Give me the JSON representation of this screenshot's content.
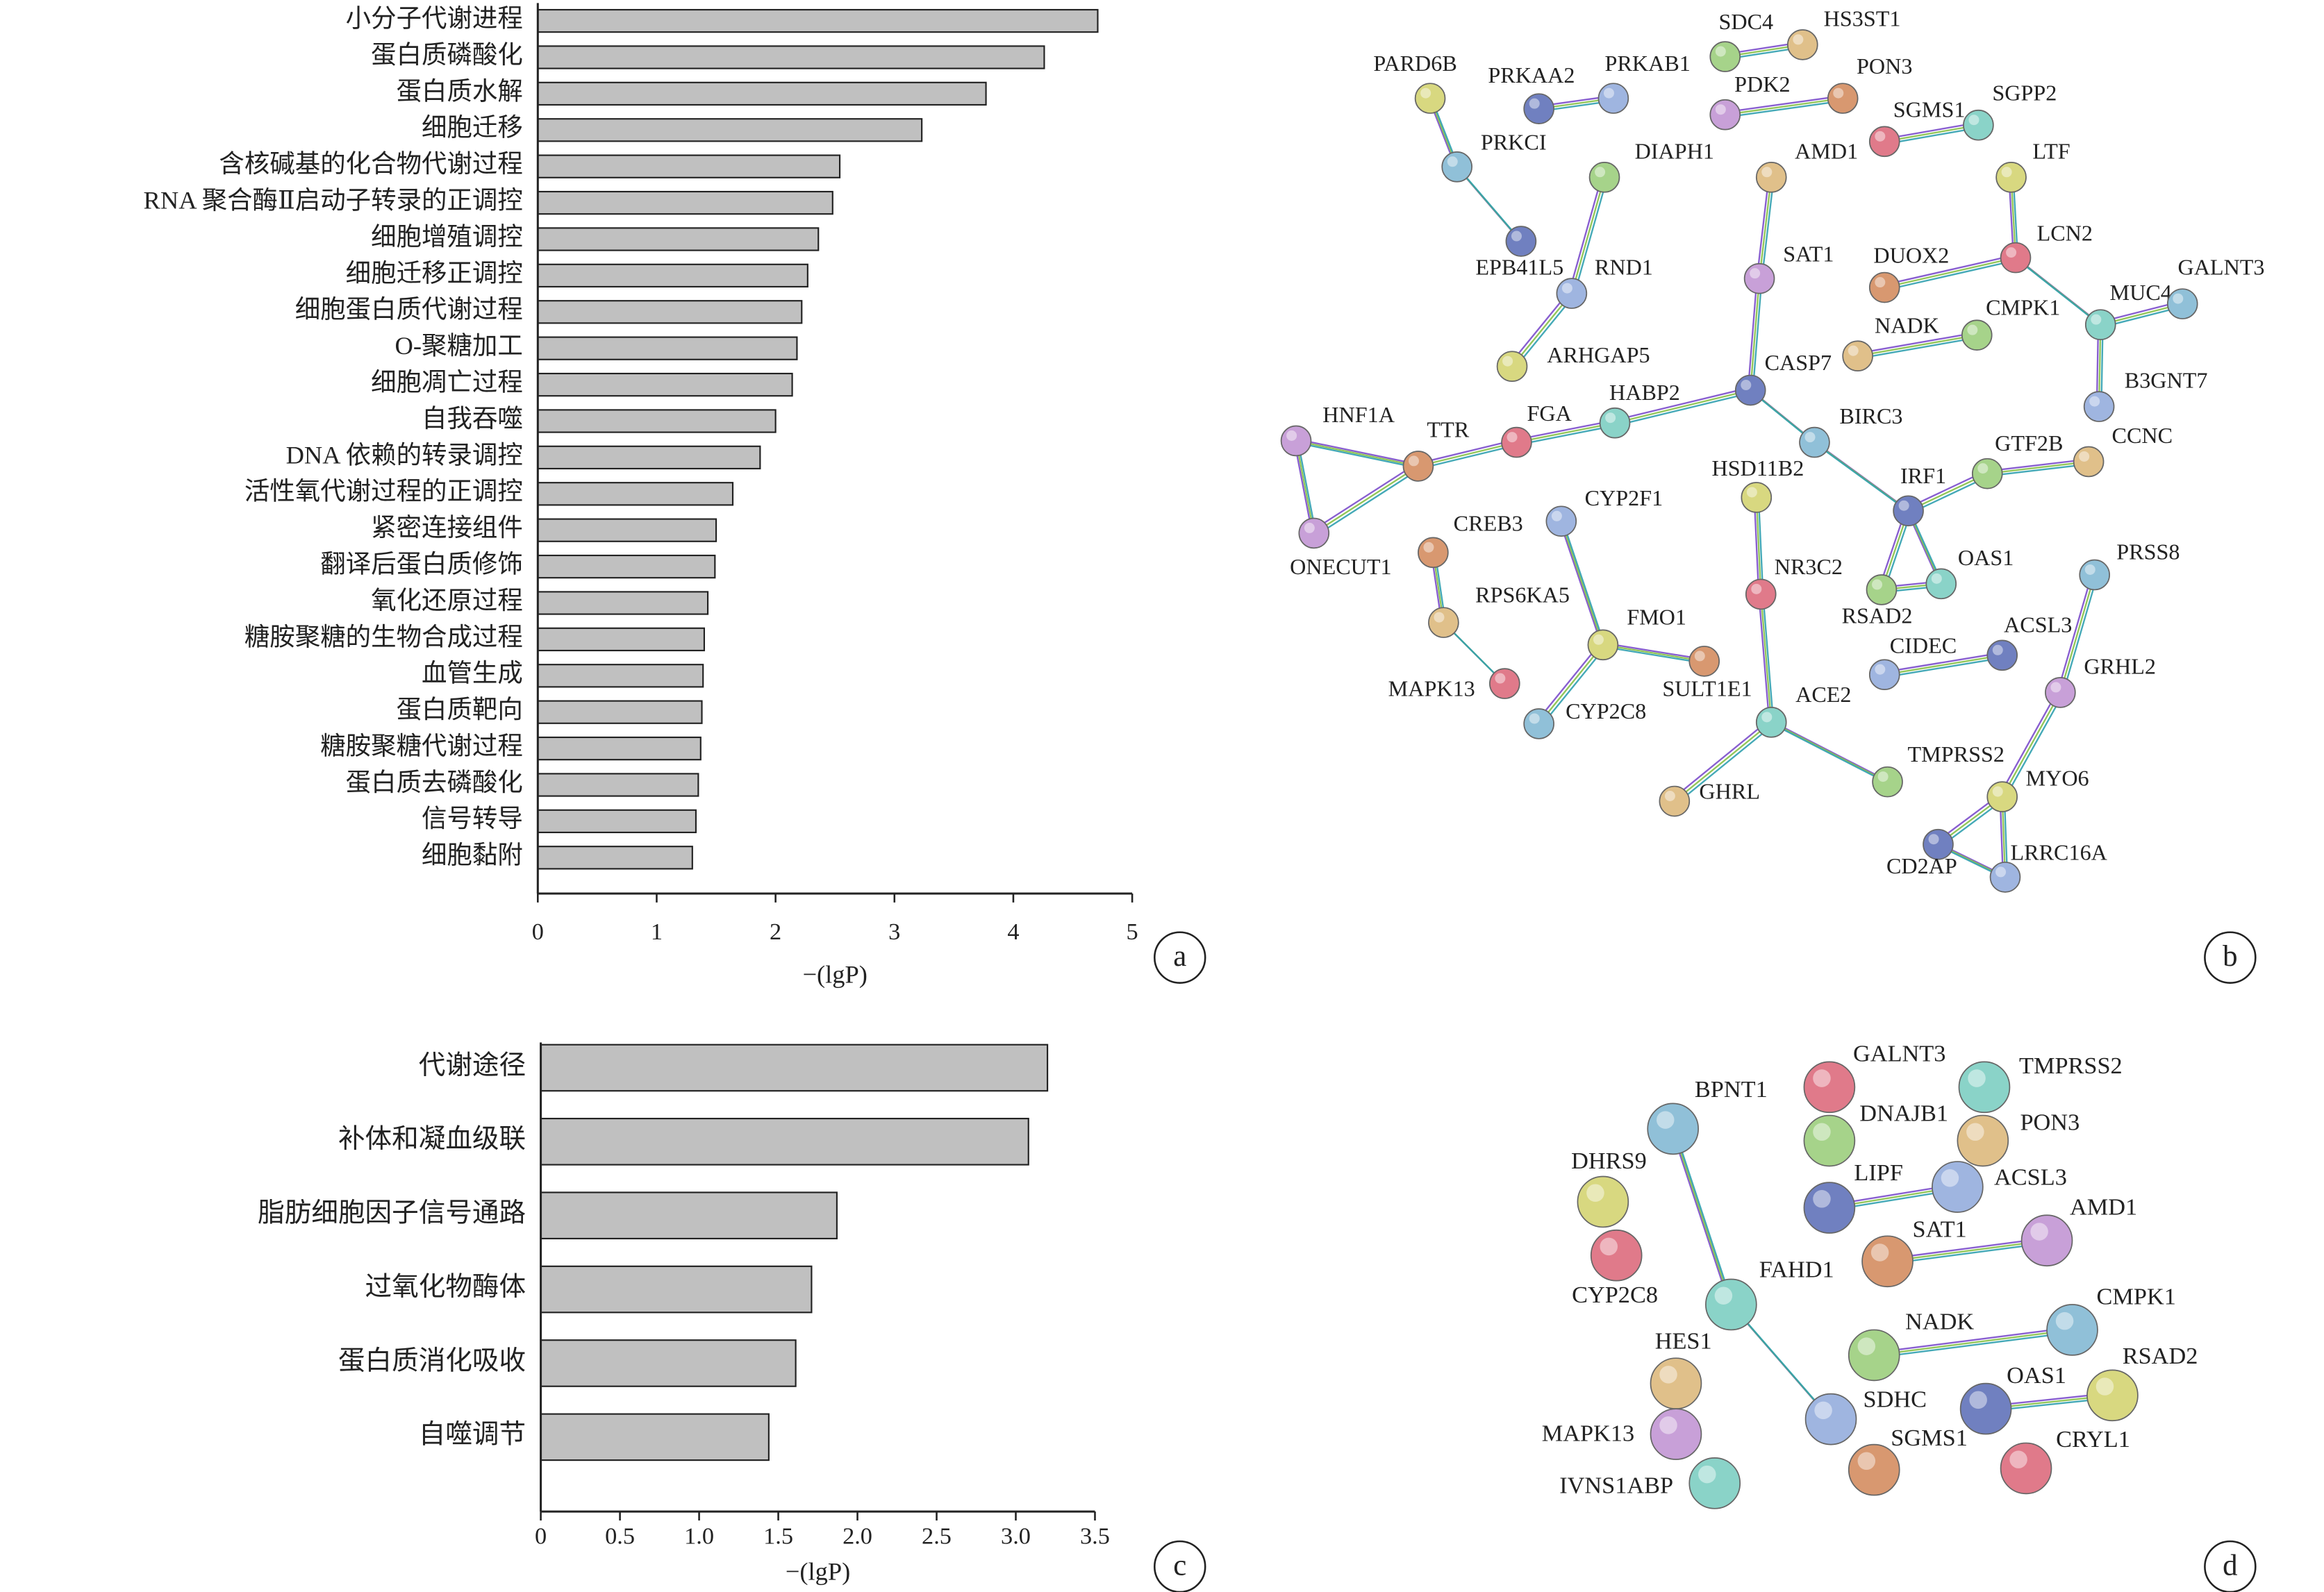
{
  "chart_data": [
    {
      "type": "bar",
      "orientation": "horizontal",
      "panel_label": "a",
      "xlabel": "−(lgP)",
      "categories": [
        "小分子代谢进程",
        "蛋白质磷酸化",
        "蛋白质水解",
        "细胞迁移",
        "含核碱基的化合物代谢过程",
        "RNA 聚合酶Ⅱ启动子转录的正调控",
        "细胞增殖调控",
        "细胞迁移正调控",
        "细胞蛋白质代谢过程",
        "O-聚糖加工",
        "细胞凋亡过程",
        "自我吞噬",
        "DNA 依赖的转录调控",
        "活性氧代谢过程的正调控",
        "紧密连接组件",
        "翻译后蛋白质修饰",
        "氧化还原过程",
        "糖胺聚糖的生物合成过程",
        "血管生成",
        "蛋白质靶向",
        "糖胺聚糖代谢过程",
        "蛋白质去磷酸化",
        "信号转导",
        "细胞黏附"
      ],
      "values": [
        4.71,
        4.26,
        3.77,
        3.23,
        2.54,
        2.48,
        2.36,
        2.27,
        2.22,
        2.18,
        2.14,
        2.0,
        1.87,
        1.64,
        1.5,
        1.49,
        1.43,
        1.4,
        1.39,
        1.38,
        1.37,
        1.35,
        1.33,
        1.3
      ],
      "color": "#c0c0c0",
      "xlim": [
        0,
        5
      ],
      "xticks": [
        0,
        1,
        2,
        3,
        4,
        5
      ]
    },
    {
      "type": "bar",
      "orientation": "horizontal",
      "panel_label": "c",
      "xlabel": "−(lgP)",
      "categories": [
        "代谢途径",
        "补体和凝血级联",
        "脂肪细胞因子信号通路",
        "过氧化物酶体",
        "蛋白质消化吸收",
        "自噬调节"
      ],
      "values": [
        3.2,
        3.08,
        1.87,
        1.71,
        1.61,
        1.44
      ],
      "color": "#c0c0c0",
      "xlim": [
        0,
        3.5
      ],
      "xticks": [
        0,
        0.5,
        {
          "value": 1,
          "label": "1.0"
        },
        1.5,
        {
          "value": 2,
          "label": "2.0"
        },
        2.5,
        {
          "value": 3,
          "label": "3.0"
        },
        3.5
      ]
    }
  ],
  "networks": [
    {
      "panel_label": "b",
      "nodes": [
        "SDC4",
        "HS3ST1",
        "PARD6B",
        "PRKAA2",
        "PRKAB1",
        "PDK2",
        "PON3",
        "SGMS1",
        "SGPP2",
        "PRKCI",
        "DIAPH1",
        "AMD1",
        "LTF",
        "EPB41L5",
        "RND1",
        "SAT1",
        "DUOX2",
        "LCN2",
        "MUC4",
        "GALNT3",
        "CMPK1",
        "NADK",
        "ARHGAP5",
        "CASP7",
        "B3GNT7",
        "HNF1A",
        "TTR",
        "FGA",
        "HABP2",
        "BIRC3",
        "GTF2B",
        "CCNC",
        "HSD11B2",
        "IRF1",
        "CYP2F1",
        "ONECUT1",
        "CREB3",
        "NR3C2",
        "OAS1",
        "PRSS8",
        "RSAD2",
        "RPS6KA5",
        "FMO1",
        "ACSL3",
        "CIDEC",
        "GRHL2",
        "SULT1E1",
        "MAPK13",
        "ACE2",
        "CYP2C8",
        "TMPRSS2",
        "GHRL",
        "MYO6",
        "CD2AP",
        "LRRC16A"
      ]
    },
    {
      "panel_label": "d",
      "nodes": [
        "GALNT3",
        "TMPRSS2",
        "BPNT1",
        "DNAJB1",
        "PON3",
        "DHRS9",
        "LIPF",
        "ACSL3",
        "AMD1",
        "SAT1",
        "CYP2C8",
        "FAHD1",
        "CMPK1",
        "NADK",
        "HES1",
        "RSAD2",
        "OAS1",
        "SDHC",
        "MAPK13",
        "SGMS1",
        "CRYL1",
        "IVNS1ABP"
      ]
    }
  ]
}
